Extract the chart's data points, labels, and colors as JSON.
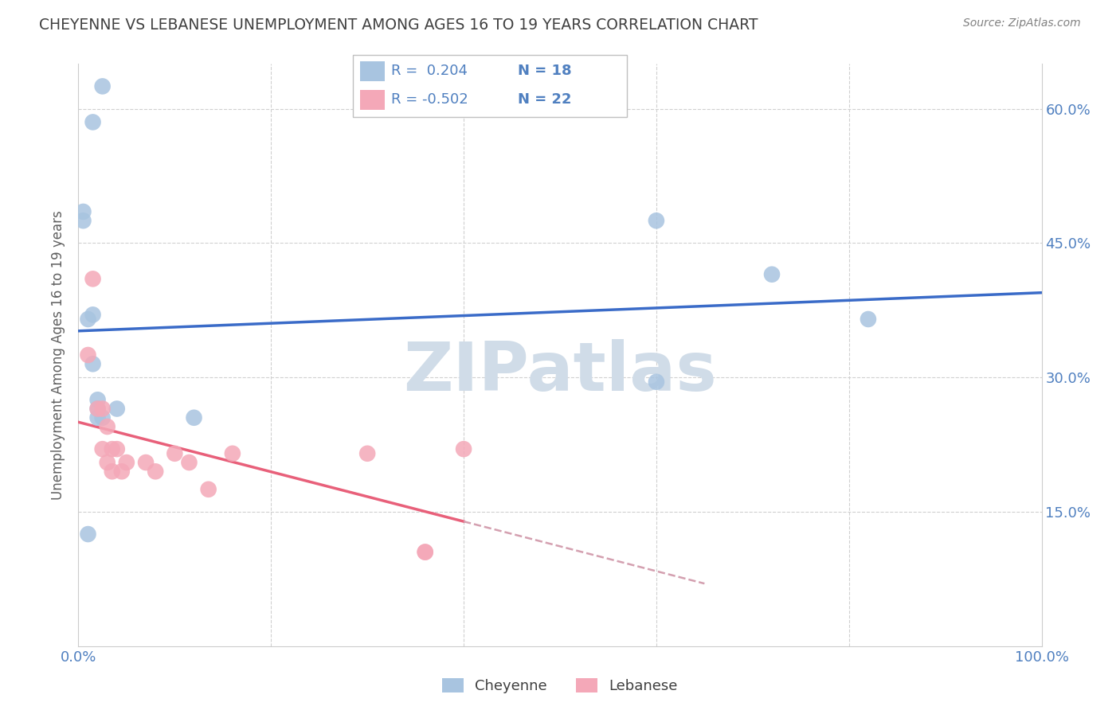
{
  "title": "CHEYENNE VS LEBANESE UNEMPLOYMENT AMONG AGES 16 TO 19 YEARS CORRELATION CHART",
  "source": "Source: ZipAtlas.com",
  "ylabel": "Unemployment Among Ages 16 to 19 years",
  "xlim": [
    0.0,
    1.0
  ],
  "ylim": [
    0.0,
    0.65
  ],
  "yticks": [
    0.0,
    0.15,
    0.3,
    0.45,
    0.6
  ],
  "ytick_labels": [
    "",
    "15.0%",
    "30.0%",
    "45.0%",
    "60.0%"
  ],
  "legend_R_cheyenne": "R =  0.204",
  "legend_N_cheyenne": "N = 18",
  "legend_R_lebanese": "R = -0.502",
  "legend_N_lebanese": "N = 22",
  "cheyenne_color": "#a8c4e0",
  "lebanese_color": "#f4a8b8",
  "cheyenne_line_color": "#3a6bc8",
  "lebanese_line_color": "#e8607a",
  "lebanese_line_dash_color": "#d4a0b0",
  "watermark": "ZIPatlas",
  "watermark_color": "#d0dce8",
  "cheyenne_x": [
    0.015,
    0.025,
    0.005,
    0.005,
    0.01,
    0.015,
    0.015,
    0.02,
    0.02,
    0.02,
    0.025,
    0.04,
    0.12,
    0.6,
    0.72,
    0.82,
    0.6,
    0.01
  ],
  "cheyenne_y": [
    0.585,
    0.625,
    0.485,
    0.475,
    0.365,
    0.315,
    0.37,
    0.275,
    0.265,
    0.255,
    0.255,
    0.265,
    0.255,
    0.475,
    0.415,
    0.365,
    0.295,
    0.125
  ],
  "lebanese_x": [
    0.01,
    0.015,
    0.02,
    0.025,
    0.025,
    0.03,
    0.03,
    0.035,
    0.035,
    0.04,
    0.045,
    0.05,
    0.07,
    0.08,
    0.1,
    0.115,
    0.135,
    0.16,
    0.3,
    0.36,
    0.4,
    0.36
  ],
  "lebanese_y": [
    0.325,
    0.41,
    0.265,
    0.265,
    0.22,
    0.245,
    0.205,
    0.22,
    0.195,
    0.22,
    0.195,
    0.205,
    0.205,
    0.195,
    0.215,
    0.205,
    0.175,
    0.215,
    0.215,
    0.105,
    0.22,
    0.105
  ],
  "bg_color": "#ffffff",
  "grid_color": "#d0d0d0",
  "title_color": "#404040",
  "axis_label_color": "#5080c0",
  "legend_text_color": "#5080c0"
}
